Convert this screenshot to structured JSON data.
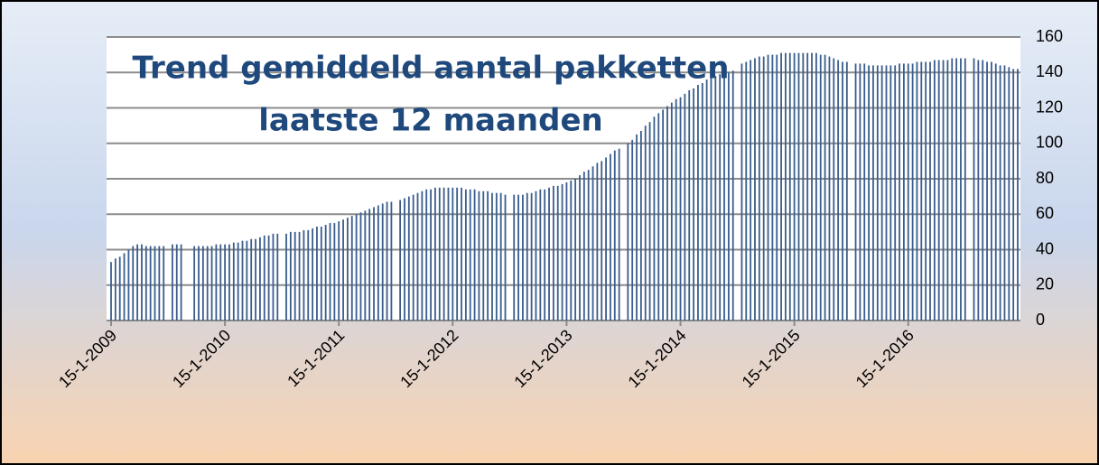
{
  "chart_data": {
    "type": "bar",
    "title": [
      "Trend gemiddeld aantal pakketten",
      "laatste 12 maanden"
    ],
    "color": "#3a5d8c",
    "grid": true,
    "ylim": [
      0,
      160
    ],
    "yticks": [
      0,
      20,
      40,
      60,
      80,
      100,
      120,
      140,
      160
    ],
    "categories": [
      "15-1-2009",
      null,
      null,
      null,
      null,
      null,
      null,
      null,
      null,
      null,
      null,
      null,
      null,
      null,
      null,
      null,
      null,
      null,
      null,
      null,
      null,
      null,
      null,
      null,
      null,
      null,
      "15-1-2010",
      null,
      null,
      null,
      null,
      null,
      null,
      null,
      null,
      null,
      null,
      null,
      null,
      null,
      null,
      null,
      null,
      null,
      null,
      null,
      null,
      null,
      null,
      null,
      null,
      null,
      "15-1-2011",
      null,
      null,
      null,
      null,
      null,
      null,
      null,
      null,
      null,
      null,
      null,
      null,
      null,
      null,
      null,
      null,
      null,
      null,
      null,
      null,
      null,
      null,
      null,
      null,
      null,
      "15-1-2012",
      null,
      null,
      null,
      null,
      null,
      null,
      null,
      null,
      null,
      null,
      null,
      null,
      null,
      null,
      null,
      null,
      null,
      null,
      null,
      null,
      null,
      null,
      null,
      null,
      null,
      "15-1-2013",
      null,
      null,
      null,
      null,
      null,
      null,
      null,
      null,
      null,
      null,
      null,
      null,
      null,
      null,
      null,
      null,
      null,
      null,
      null,
      null,
      null,
      null,
      null,
      null,
      null,
      "15-1-2014",
      null,
      null,
      null,
      null,
      null,
      null,
      null,
      null,
      null,
      null,
      null,
      null,
      null,
      null,
      null,
      null,
      null,
      null,
      null,
      null,
      null,
      null,
      null,
      null,
      null,
      "15-1-2015",
      null,
      null,
      null,
      null,
      null,
      null,
      null,
      null,
      null,
      null,
      null,
      null,
      null,
      null,
      null,
      null,
      null,
      null,
      null,
      null,
      null,
      null,
      null,
      null,
      null,
      "15-1-2016",
      null,
      null,
      null,
      null,
      null,
      null,
      null,
      null,
      null,
      null,
      null,
      null,
      null,
      null,
      null,
      null,
      null,
      null,
      null,
      null,
      null,
      null,
      null,
      null,
      null
    ],
    "values": [
      33,
      35,
      36,
      38,
      40,
      42,
      43,
      43,
      42,
      42,
      42,
      42,
      42,
      null,
      43,
      43,
      43,
      null,
      null,
      42,
      42,
      42,
      42,
      42,
      43,
      43,
      43,
      43,
      44,
      44,
      45,
      45,
      46,
      46,
      47,
      48,
      48,
      49,
      49,
      null,
      49,
      50,
      50,
      50,
      51,
      51,
      52,
      53,
      53,
      54,
      55,
      55,
      56,
      57,
      58,
      59,
      60,
      61,
      62,
      63,
      64,
      65,
      66,
      67,
      67,
      null,
      68,
      69,
      70,
      71,
      72,
      73,
      74,
      74,
      75,
      75,
      75,
      75,
      75,
      75,
      75,
      74,
      74,
      74,
      73,
      73,
      73,
      72,
      72,
      72,
      71,
      null,
      71,
      71,
      71,
      72,
      72,
      73,
      74,
      74,
      75,
      76,
      76,
      77,
      78,
      79,
      80,
      82,
      84,
      85,
      87,
      89,
      90,
      92,
      94,
      96,
      97,
      null,
      100,
      102,
      105,
      107,
      110,
      112,
      115,
      117,
      119,
      121,
      123,
      125,
      126,
      128,
      130,
      131,
      133,
      134,
      136,
      137,
      138,
      139,
      140,
      140,
      141,
      null,
      145,
      146,
      147,
      148,
      149,
      149,
      150,
      150,
      150,
      151,
      151,
      151,
      151,
      151,
      151,
      151,
      151,
      151,
      150,
      150,
      149,
      148,
      147,
      146,
      146,
      null,
      145,
      145,
      145,
      144,
      144,
      144,
      144,
      144,
      144,
      144,
      145,
      145,
      145,
      145,
      146,
      146,
      146,
      146,
      147,
      147,
      147,
      147,
      148,
      148,
      148,
      148,
      null,
      148,
      147,
      147,
      146,
      146,
      145,
      144,
      144,
      143,
      142,
      142
    ]
  }
}
